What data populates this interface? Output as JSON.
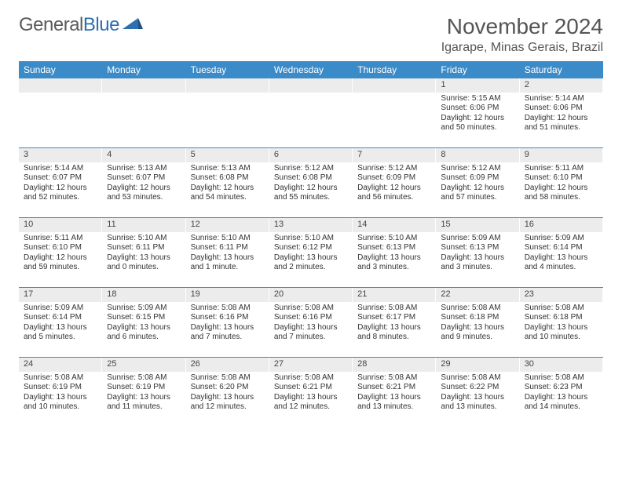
{
  "logo": {
    "text1": "General",
    "text2": "Blue"
  },
  "title": "November 2024",
  "location": "Igarape, Minas Gerais, Brazil",
  "colors": {
    "headerBar": "#3b8bc9",
    "dayNumBg": "#ececec",
    "weekDivider": "#3b8bc9",
    "logoBlue": "#2d6fb0",
    "logoGray": "#5a5a5a"
  },
  "dayHeaders": [
    "Sunday",
    "Monday",
    "Tuesday",
    "Wednesday",
    "Thursday",
    "Friday",
    "Saturday"
  ],
  "weeks": [
    [
      {
        "n": "",
        "sunrise": "",
        "sunset": "",
        "daylight": ""
      },
      {
        "n": "",
        "sunrise": "",
        "sunset": "",
        "daylight": ""
      },
      {
        "n": "",
        "sunrise": "",
        "sunset": "",
        "daylight": ""
      },
      {
        "n": "",
        "sunrise": "",
        "sunset": "",
        "daylight": ""
      },
      {
        "n": "",
        "sunrise": "",
        "sunset": "",
        "daylight": ""
      },
      {
        "n": "1",
        "sunrise": "Sunrise: 5:15 AM",
        "sunset": "Sunset: 6:06 PM",
        "daylight": "Daylight: 12 hours and 50 minutes."
      },
      {
        "n": "2",
        "sunrise": "Sunrise: 5:14 AM",
        "sunset": "Sunset: 6:06 PM",
        "daylight": "Daylight: 12 hours and 51 minutes."
      }
    ],
    [
      {
        "n": "3",
        "sunrise": "Sunrise: 5:14 AM",
        "sunset": "Sunset: 6:07 PM",
        "daylight": "Daylight: 12 hours and 52 minutes."
      },
      {
        "n": "4",
        "sunrise": "Sunrise: 5:13 AM",
        "sunset": "Sunset: 6:07 PM",
        "daylight": "Daylight: 12 hours and 53 minutes."
      },
      {
        "n": "5",
        "sunrise": "Sunrise: 5:13 AM",
        "sunset": "Sunset: 6:08 PM",
        "daylight": "Daylight: 12 hours and 54 minutes."
      },
      {
        "n": "6",
        "sunrise": "Sunrise: 5:12 AM",
        "sunset": "Sunset: 6:08 PM",
        "daylight": "Daylight: 12 hours and 55 minutes."
      },
      {
        "n": "7",
        "sunrise": "Sunrise: 5:12 AM",
        "sunset": "Sunset: 6:09 PM",
        "daylight": "Daylight: 12 hours and 56 minutes."
      },
      {
        "n": "8",
        "sunrise": "Sunrise: 5:12 AM",
        "sunset": "Sunset: 6:09 PM",
        "daylight": "Daylight: 12 hours and 57 minutes."
      },
      {
        "n": "9",
        "sunrise": "Sunrise: 5:11 AM",
        "sunset": "Sunset: 6:10 PM",
        "daylight": "Daylight: 12 hours and 58 minutes."
      }
    ],
    [
      {
        "n": "10",
        "sunrise": "Sunrise: 5:11 AM",
        "sunset": "Sunset: 6:10 PM",
        "daylight": "Daylight: 12 hours and 59 minutes."
      },
      {
        "n": "11",
        "sunrise": "Sunrise: 5:10 AM",
        "sunset": "Sunset: 6:11 PM",
        "daylight": "Daylight: 13 hours and 0 minutes."
      },
      {
        "n": "12",
        "sunrise": "Sunrise: 5:10 AM",
        "sunset": "Sunset: 6:11 PM",
        "daylight": "Daylight: 13 hours and 1 minute."
      },
      {
        "n": "13",
        "sunrise": "Sunrise: 5:10 AM",
        "sunset": "Sunset: 6:12 PM",
        "daylight": "Daylight: 13 hours and 2 minutes."
      },
      {
        "n": "14",
        "sunrise": "Sunrise: 5:10 AM",
        "sunset": "Sunset: 6:13 PM",
        "daylight": "Daylight: 13 hours and 3 minutes."
      },
      {
        "n": "15",
        "sunrise": "Sunrise: 5:09 AM",
        "sunset": "Sunset: 6:13 PM",
        "daylight": "Daylight: 13 hours and 3 minutes."
      },
      {
        "n": "16",
        "sunrise": "Sunrise: 5:09 AM",
        "sunset": "Sunset: 6:14 PM",
        "daylight": "Daylight: 13 hours and 4 minutes."
      }
    ],
    [
      {
        "n": "17",
        "sunrise": "Sunrise: 5:09 AM",
        "sunset": "Sunset: 6:14 PM",
        "daylight": "Daylight: 13 hours and 5 minutes."
      },
      {
        "n": "18",
        "sunrise": "Sunrise: 5:09 AM",
        "sunset": "Sunset: 6:15 PM",
        "daylight": "Daylight: 13 hours and 6 minutes."
      },
      {
        "n": "19",
        "sunrise": "Sunrise: 5:08 AM",
        "sunset": "Sunset: 6:16 PM",
        "daylight": "Daylight: 13 hours and 7 minutes."
      },
      {
        "n": "20",
        "sunrise": "Sunrise: 5:08 AM",
        "sunset": "Sunset: 6:16 PM",
        "daylight": "Daylight: 13 hours and 7 minutes."
      },
      {
        "n": "21",
        "sunrise": "Sunrise: 5:08 AM",
        "sunset": "Sunset: 6:17 PM",
        "daylight": "Daylight: 13 hours and 8 minutes."
      },
      {
        "n": "22",
        "sunrise": "Sunrise: 5:08 AM",
        "sunset": "Sunset: 6:18 PM",
        "daylight": "Daylight: 13 hours and 9 minutes."
      },
      {
        "n": "23",
        "sunrise": "Sunrise: 5:08 AM",
        "sunset": "Sunset: 6:18 PM",
        "daylight": "Daylight: 13 hours and 10 minutes."
      }
    ],
    [
      {
        "n": "24",
        "sunrise": "Sunrise: 5:08 AM",
        "sunset": "Sunset: 6:19 PM",
        "daylight": "Daylight: 13 hours and 10 minutes."
      },
      {
        "n": "25",
        "sunrise": "Sunrise: 5:08 AM",
        "sunset": "Sunset: 6:19 PM",
        "daylight": "Daylight: 13 hours and 11 minutes."
      },
      {
        "n": "26",
        "sunrise": "Sunrise: 5:08 AM",
        "sunset": "Sunset: 6:20 PM",
        "daylight": "Daylight: 13 hours and 12 minutes."
      },
      {
        "n": "27",
        "sunrise": "Sunrise: 5:08 AM",
        "sunset": "Sunset: 6:21 PM",
        "daylight": "Daylight: 13 hours and 12 minutes."
      },
      {
        "n": "28",
        "sunrise": "Sunrise: 5:08 AM",
        "sunset": "Sunset: 6:21 PM",
        "daylight": "Daylight: 13 hours and 13 minutes."
      },
      {
        "n": "29",
        "sunrise": "Sunrise: 5:08 AM",
        "sunset": "Sunset: 6:22 PM",
        "daylight": "Daylight: 13 hours and 13 minutes."
      },
      {
        "n": "30",
        "sunrise": "Sunrise: 5:08 AM",
        "sunset": "Sunset: 6:23 PM",
        "daylight": "Daylight: 13 hours and 14 minutes."
      }
    ]
  ]
}
